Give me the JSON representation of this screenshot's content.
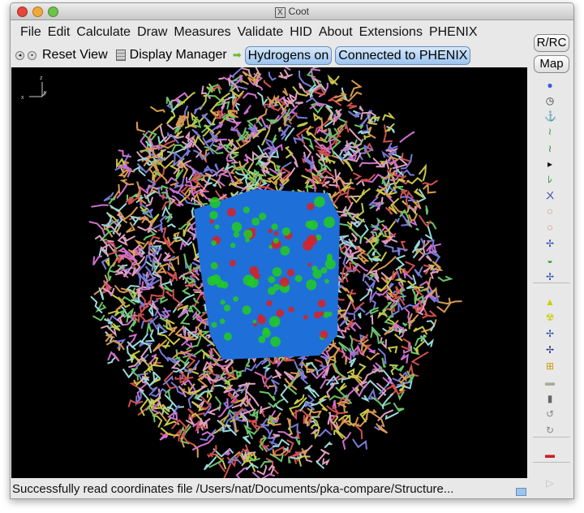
{
  "window": {
    "title": "Coot"
  },
  "menu": [
    "File",
    "Edit",
    "Calculate",
    "Draw",
    "Measures",
    "Validate",
    "HID",
    "About",
    "Extensions",
    "PHENIX"
  ],
  "toolbar": {
    "reset_view": "Reset View",
    "display_manager": "Display Manager",
    "hydrogens": "Hydrogens on",
    "phenix": "Connected to PHENIX"
  },
  "side": {
    "rrc": "R/RC",
    "map": "Map"
  },
  "side_icons": [
    "rotate-translate-icon",
    "rotate-view-icon",
    "rigid-body-icon",
    "real-space-refine-icon",
    "regularize-icon",
    "expand-icon",
    "auto-fit-rotamer-icon",
    "rotamers-icon",
    "edit-chi-icon",
    "torsion-icon",
    "flip-peptide-icon",
    "sidechain-icon",
    "backbone-icon",
    "add-atom-icon",
    "add-water-icon",
    "add-terminal-residue-icon",
    "add-residue-icon",
    "delete-icon",
    "clear-pending-icon",
    "trash-icon",
    "undo-icon",
    "redo-icon",
    "ramachandran-flag-icon"
  ],
  "axes": {
    "z": "z",
    "x": "x",
    "y": "y"
  },
  "status": "Successfully read coordinates file /Users/nat/Documents/pka-compare/Structure..."
}
